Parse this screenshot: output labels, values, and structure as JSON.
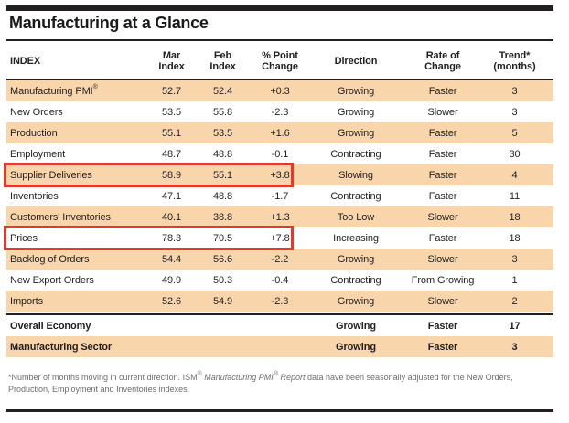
{
  "page": {
    "title": "Manufacturing at a Glance"
  },
  "colors": {
    "row_shade": "#f9d5ab",
    "highlight_red": "#e13a2c",
    "rule_black": "#231f20",
    "footnote_gray": "#6d6e71"
  },
  "table": {
    "reg_mark": "®",
    "headers": {
      "index": "INDEX",
      "mar": [
        "Mar",
        "Index"
      ],
      "feb": [
        "Feb",
        "Index"
      ],
      "pct": [
        "% Point",
        "Change"
      ],
      "direction": "Direction",
      "rate": [
        "Rate of",
        "Change"
      ],
      "trend": [
        "Trend*",
        "(months)"
      ]
    },
    "rows": [
      {
        "index": "Manufacturing PMI",
        "mar": "52.7",
        "feb": "52.4",
        "change": "+0.3",
        "direction": "Growing",
        "rate": "Faster",
        "trend": "3"
      },
      {
        "index": "New Orders",
        "mar": "53.5",
        "feb": "55.8",
        "change": "-2.3",
        "direction": "Growing",
        "rate": "Slower",
        "trend": "3"
      },
      {
        "index": "Production",
        "mar": "55.1",
        "feb": "53.5",
        "change": "+1.6",
        "direction": "Growing",
        "rate": "Faster",
        "trend": "5"
      },
      {
        "index": "Employment",
        "mar": "48.7",
        "feb": "48.8",
        "change": "-0.1",
        "direction": "Contracting",
        "rate": "Faster",
        "trend": "30"
      },
      {
        "index": "Supplier Deliveries",
        "mar": "58.9",
        "feb": "55.1",
        "change": "+3.8",
        "direction": "Slowing",
        "rate": "Faster",
        "trend": "4"
      },
      {
        "index": "Inventories",
        "mar": "47.1",
        "feb": "48.8",
        "change": "-1.7",
        "direction": "Contracting",
        "rate": "Faster",
        "trend": "11"
      },
      {
        "index": "Customers' Inventories",
        "mar": "40.1",
        "feb": "38.8",
        "change": "+1.3",
        "direction": "Too Low",
        "rate": "Slower",
        "trend": "18"
      },
      {
        "index": "Prices",
        "mar": "78.3",
        "feb": "70.5",
        "change": "+7.8",
        "direction": "Increasing",
        "rate": "Faster",
        "trend": "18"
      },
      {
        "index": "Backlog of Orders",
        "mar": "54.4",
        "feb": "56.6",
        "change": "-2.2",
        "direction": "Growing",
        "rate": "Slower",
        "trend": "3"
      },
      {
        "index": "New Export Orders",
        "mar": "49.9",
        "feb": "50.3",
        "change": "-0.4",
        "direction": "Contracting",
        "rate": "From Growing",
        "trend": "1"
      },
      {
        "index": "Imports",
        "mar": "52.6",
        "feb": "54.9",
        "change": "-2.3",
        "direction": "Growing",
        "rate": "Slower",
        "trend": "2"
      },
      {
        "index": "Overall Economy",
        "mar": "",
        "feb": "",
        "change": "",
        "direction": "Growing",
        "rate": "Faster",
        "trend": "17"
      },
      {
        "index": "Manufacturing Sector",
        "mar": "",
        "feb": "",
        "change": "",
        "direction": "Growing",
        "rate": "Faster",
        "trend": "3"
      }
    ]
  },
  "footnote": {
    "part1": "*Number of months moving in current direction. ISM",
    "sup1": "®",
    "italic1": " Manufacturing PMI",
    "sup2": "®",
    "italic2": " Report",
    "part2a": " data have been seasonally adjusted for the New Orders,",
    "part2b": "Production, Employment and Inventories indexes."
  }
}
